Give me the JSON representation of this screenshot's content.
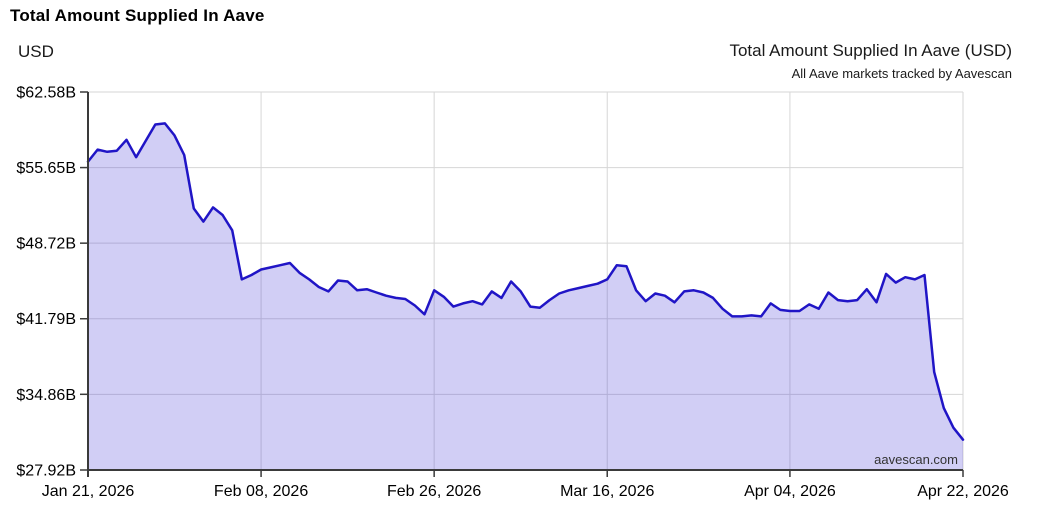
{
  "page": {
    "title": "Total Amount Supplied In Aave",
    "unit_label": "USD",
    "chart_title": "Total Amount Supplied In Aave (USD)",
    "chart_subtitle": "All Aave markets tracked by Aavescan",
    "watermark": "aavescan.com"
  },
  "colors": {
    "line": "#2015c6",
    "fill": "rgba(62,52,215,0.24)",
    "grid": "#d6d6d6",
    "axis": "#3a3a3a",
    "text": "#000000"
  },
  "chart_data": {
    "type": "area",
    "title": "Total Amount Supplied In Aave (USD)",
    "subtitle": "All Aave markets tracked by Aavescan",
    "ylabel": "USD",
    "unit": "USD billions",
    "x_interval": "daily",
    "start_date": "Jan 21, 2026",
    "end_date": "Apr 22, 2026",
    "ylim": [
      27.92,
      62.58
    ],
    "grid": true,
    "legend": false,
    "y_ticks": {
      "values": [
        62.58,
        55.65,
        48.72,
        41.79,
        34.86,
        27.92
      ],
      "labels": [
        "$62.58B",
        "$55.65B",
        "$48.72B",
        "$41.79B",
        "$34.86B",
        "$27.92B"
      ]
    },
    "x_ticks": {
      "labels": [
        "Jan 21, 2026",
        "Feb 08, 2026",
        "Feb 26, 2026",
        "Mar 16, 2026",
        "Apr 04, 2026",
        "Apr 22, 2026"
      ],
      "day_indices": [
        0,
        18,
        36,
        54,
        73,
        91
      ]
    },
    "values": [
      56.2,
      57.3,
      57.1,
      57.2,
      58.2,
      56.6,
      58.1,
      59.6,
      59.7,
      58.6,
      56.8,
      51.9,
      50.7,
      52.0,
      51.3,
      49.9,
      45.4,
      45.8,
      46.3,
      46.5,
      46.7,
      46.9,
      46.0,
      45.4,
      44.7,
      44.3,
      45.3,
      45.2,
      44.4,
      44.5,
      44.2,
      43.9,
      43.7,
      43.6,
      43.0,
      42.2,
      44.4,
      43.8,
      42.9,
      43.2,
      43.4,
      43.1,
      44.3,
      43.7,
      45.2,
      44.3,
      42.9,
      42.8,
      43.5,
      44.1,
      44.4,
      44.6,
      44.8,
      45.0,
      45.4,
      46.7,
      46.6,
      44.4,
      43.4,
      44.1,
      43.9,
      43.3,
      44.3,
      44.4,
      44.2,
      43.7,
      42.7,
      42.0,
      42.0,
      42.1,
      42.0,
      43.2,
      42.6,
      42.5,
      42.5,
      43.1,
      42.7,
      44.2,
      43.5,
      43.4,
      43.5,
      44.5,
      43.3,
      45.9,
      45.1,
      45.6,
      45.4,
      45.8,
      36.9,
      33.6,
      31.8,
      30.7
    ]
  }
}
